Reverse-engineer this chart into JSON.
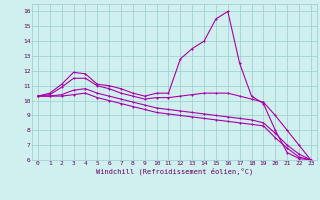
{
  "xlabel": "Windchill (Refroidissement éolien,°C)",
  "bg_color": "#cff0ee",
  "line_color": "#aa00aa",
  "grid_color": "#99cccc",
  "xlim": [
    -0.5,
    23.5
  ],
  "ylim": [
    6,
    16.5
  ],
  "xticks": [
    0,
    1,
    2,
    3,
    4,
    5,
    6,
    7,
    8,
    9,
    10,
    11,
    12,
    13,
    14,
    15,
    16,
    17,
    18,
    19,
    20,
    21,
    22,
    23
  ],
  "yticks": [
    6,
    7,
    8,
    9,
    10,
    11,
    12,
    13,
    14,
    15,
    16
  ],
  "line1_x": [
    0,
    1,
    2,
    3,
    4,
    5,
    6,
    7,
    8,
    9,
    10,
    11,
    12,
    13,
    14,
    15,
    16,
    17,
    18,
    19,
    20,
    21,
    22,
    23
  ],
  "line1_y": [
    10.3,
    10.5,
    11.1,
    11.9,
    11.8,
    11.1,
    11.0,
    10.8,
    10.5,
    10.3,
    10.5,
    10.5,
    12.8,
    13.5,
    14.0,
    15.5,
    16.0,
    12.5,
    10.3,
    9.8,
    8.0,
    6.5,
    6.1,
    6.0
  ],
  "line2_x": [
    0,
    1,
    2,
    3,
    4,
    5,
    6,
    7,
    8,
    9,
    10,
    11,
    12,
    13,
    14,
    15,
    16,
    17,
    18,
    19,
    20,
    21,
    22,
    23
  ],
  "line2_y": [
    10.3,
    10.4,
    10.9,
    11.5,
    11.5,
    11.0,
    10.8,
    10.5,
    10.3,
    10.1,
    10.2,
    10.2,
    10.3,
    10.4,
    10.5,
    10.5,
    10.5,
    10.3,
    10.1,
    9.9,
    9.0,
    8.0,
    7.0,
    6.0
  ],
  "line3_x": [
    0,
    1,
    2,
    3,
    4,
    5,
    6,
    7,
    8,
    9,
    10,
    11,
    12,
    13,
    14,
    15,
    16,
    17,
    18,
    19,
    20,
    21,
    22,
    23
  ],
  "line3_y": [
    10.3,
    10.3,
    10.4,
    10.7,
    10.8,
    10.5,
    10.3,
    10.1,
    9.9,
    9.7,
    9.5,
    9.4,
    9.3,
    9.2,
    9.1,
    9.0,
    8.9,
    8.8,
    8.7,
    8.5,
    7.8,
    7.0,
    6.4,
    6.0
  ],
  "line4_x": [
    0,
    1,
    2,
    3,
    4,
    5,
    6,
    7,
    8,
    9,
    10,
    11,
    12,
    13,
    14,
    15,
    16,
    17,
    18,
    19,
    20,
    21,
    22,
    23
  ],
  "line4_y": [
    10.3,
    10.3,
    10.3,
    10.4,
    10.5,
    10.2,
    10.0,
    9.8,
    9.6,
    9.4,
    9.2,
    9.1,
    9.0,
    8.9,
    8.8,
    8.7,
    8.6,
    8.5,
    8.4,
    8.3,
    7.5,
    6.8,
    6.2,
    6.0
  ]
}
